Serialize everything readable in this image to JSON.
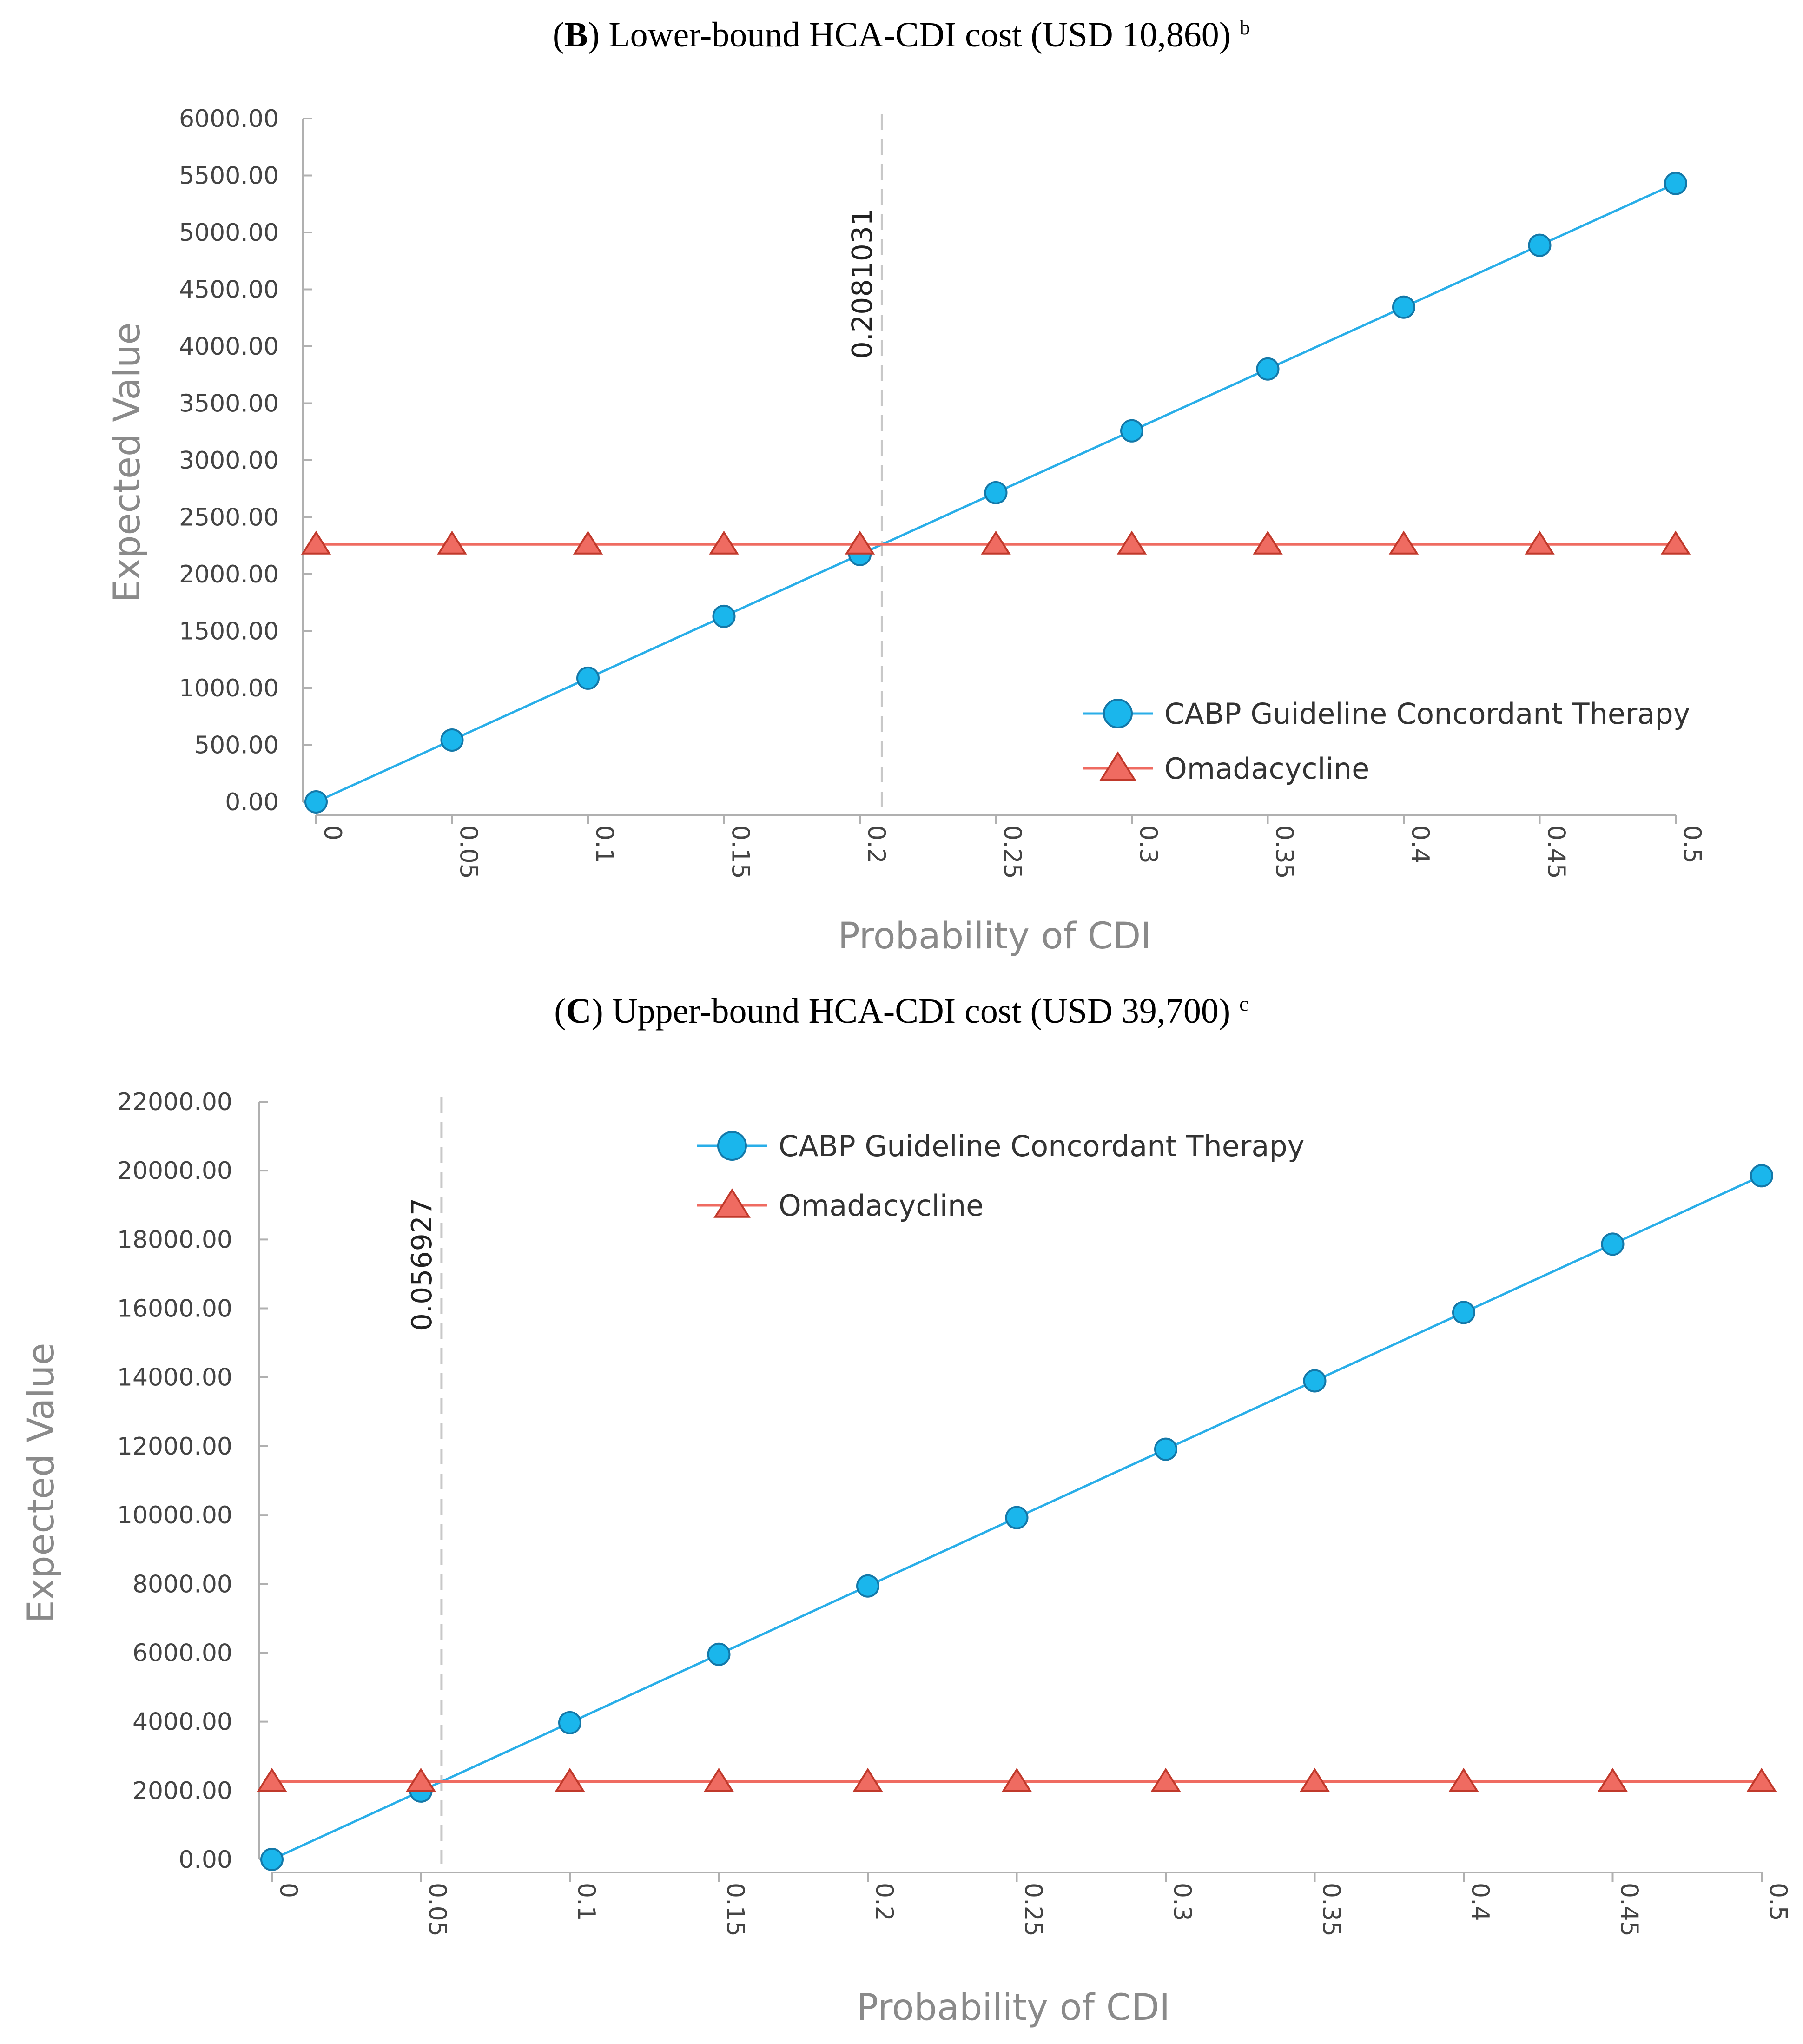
{
  "colors": {
    "series_cabp": "#1ab6ec",
    "series_cabp_line": "#29aee8",
    "series_cabp_stroke": "#1478a8",
    "series_omada": "#ef6b61",
    "series_omada_stroke": "#c0392b",
    "axis": "#b0b0b0",
    "threshold": "#c8c8c8"
  },
  "chart_data": [
    {
      "panel": "B",
      "type": "line",
      "title_prefix": "(",
      "title_letter": "B",
      "title_rest": ") Lower-bound HCA-CDI cost (USD 10,860)",
      "title_sup": "b",
      "xlabel": "Probability of CDI",
      "ylabel": "Expected Value",
      "x": [
        0,
        0.05,
        0.1,
        0.15,
        0.2,
        0.25,
        0.3,
        0.35,
        0.4,
        0.45,
        0.5
      ],
      "xtick_labels": [
        "0",
        "0.05",
        "0.1",
        "0.15",
        "0.2",
        "0.25",
        "0.3",
        "0.35",
        "0.4",
        "0.45",
        "0.5"
      ],
      "ylim": [
        0,
        6000
      ],
      "yticks": [
        0,
        500,
        1000,
        1500,
        2000,
        2500,
        3000,
        3500,
        4000,
        4500,
        5000,
        5500,
        6000
      ],
      "ytick_labels": [
        "0.00",
        "500.00",
        "1000.00",
        "1500.00",
        "2000.00",
        "2500.00",
        "3000.00",
        "3500.00",
        "4000.00",
        "4500.00",
        "5000.00",
        "5500.00",
        "6000.00"
      ],
      "threshold": {
        "x": 0.2081031,
        "label": "0.2081031"
      },
      "legend_position": "bottom-right",
      "series": [
        {
          "name": "CABP Guideline Concordant Therapy",
          "marker": "circle",
          "values": [
            0,
            543,
            1086,
            1629,
            2172,
            2715,
            3258,
            3801,
            4344,
            4887,
            5430
          ]
        },
        {
          "name": "Omadacycline",
          "marker": "triangle",
          "values": [
            2260,
            2260,
            2260,
            2260,
            2260,
            2260,
            2260,
            2260,
            2260,
            2260,
            2260
          ]
        }
      ]
    },
    {
      "panel": "C",
      "type": "line",
      "title_prefix": "(",
      "title_letter": "C",
      "title_rest": ") Upper-bound HCA-CDI cost (USD 39,700)",
      "title_sup": "c",
      "xlabel": "Probability of CDI",
      "ylabel": "Expected Value",
      "x": [
        0,
        0.05,
        0.1,
        0.15,
        0.2,
        0.25,
        0.3,
        0.35,
        0.4,
        0.45,
        0.5
      ],
      "xtick_labels": [
        "0",
        "0.05",
        "0.1",
        "0.15",
        "0.2",
        "0.25",
        "0.3",
        "0.35",
        "0.4",
        "0.45",
        "0.5"
      ],
      "ylim": [
        0,
        22000
      ],
      "yticks": [
        0,
        2000,
        4000,
        6000,
        8000,
        10000,
        12000,
        14000,
        16000,
        18000,
        20000,
        22000
      ],
      "ytick_labels": [
        "0.00",
        "2000.00",
        "4000.00",
        "6000.00",
        "8000.00",
        "10000.00",
        "12000.00",
        "14000.00",
        "16000.00",
        "18000.00",
        "20000.00",
        "22000.00"
      ],
      "threshold": {
        "x": 0.056927,
        "label": "0.056927"
      },
      "legend_position": "top-center",
      "series": [
        {
          "name": "CABP Guideline Concordant Therapy",
          "marker": "circle",
          "values": [
            0,
            1985,
            3970,
            5955,
            7940,
            9925,
            11910,
            13895,
            15880,
            17865,
            19850
          ]
        },
        {
          "name": "Omadacycline",
          "marker": "triangle",
          "values": [
            2260,
            2260,
            2260,
            2260,
            2260,
            2260,
            2260,
            2260,
            2260,
            2260,
            2260
          ]
        }
      ]
    }
  ]
}
